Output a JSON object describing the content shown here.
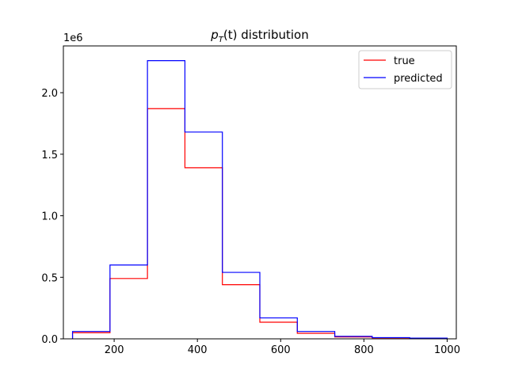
{
  "chart_data": {
    "type": "histogram",
    "title_main": "p",
    "title_sub": "T",
    "title_arg": "(t)",
    "title_rest": " distribution",
    "offset_label": "1e6",
    "bin_edges": [
      100,
      190,
      280,
      370,
      460,
      550,
      640,
      730,
      820,
      910,
      1000
    ],
    "series": [
      {
        "name": "true",
        "color": "#ff0000",
        "values": [
          50000,
          490000,
          1870000,
          1390000,
          440000,
          135000,
          45000,
          15000,
          8000,
          5000
        ]
      },
      {
        "name": "predicted",
        "color": "#0000ff",
        "values": [
          60000,
          600000,
          2260000,
          1680000,
          540000,
          170000,
          60000,
          20000,
          10000,
          6000
        ]
      }
    ],
    "xlim": [
      78,
      1022
    ],
    "ylim": [
      0,
      2380000
    ],
    "xticks": [
      {
        "value": 200,
        "label": "200"
      },
      {
        "value": 400,
        "label": "400"
      },
      {
        "value": 600,
        "label": "600"
      },
      {
        "value": 800,
        "label": "800"
      },
      {
        "value": 1000,
        "label": "1000"
      }
    ],
    "yticks": [
      {
        "value": 0,
        "label": "0.0"
      },
      {
        "value": 500000,
        "label": "0.5"
      },
      {
        "value": 1000000,
        "label": "1.0"
      },
      {
        "value": 1500000,
        "label": "1.5"
      },
      {
        "value": 2000000,
        "label": "2.0"
      }
    ],
    "legend_position": "upper right",
    "grid": false
  }
}
